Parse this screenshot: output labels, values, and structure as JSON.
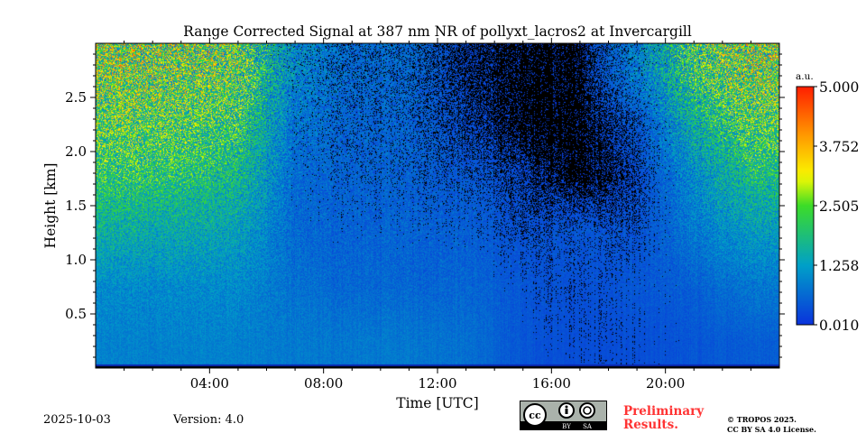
{
  "chart_data": {
    "type": "heatmap",
    "title": "Range Corrected Signal at 387 nm NR of pollyxt_lacros2 at Invercargill",
    "xlabel": "Time [UTC]",
    "ylabel": "Height [km]",
    "xlim_hours": [
      0,
      24
    ],
    "ylim_km": [
      0,
      3.0
    ],
    "x_ticks": [
      4,
      8,
      12,
      16,
      20
    ],
    "x_tick_labels": [
      "04:00",
      "08:00",
      "12:00",
      "16:00",
      "20:00"
    ],
    "y_ticks": [
      0.5,
      1.0,
      1.5,
      2.0,
      2.5
    ],
    "y_tick_labels": [
      "0.5",
      "1.0",
      "1.5",
      "2.0",
      "2.5"
    ],
    "colorbar": {
      "label": "a.u.",
      "range": [
        0.01,
        5.0
      ],
      "ticks": [
        "0.010",
        "1.258",
        "2.505",
        "3.752",
        "5.000"
      ],
      "colormap": "jet",
      "below_min_color": "#000000"
    },
    "grid_time_bins_hours": [
      0,
      2,
      4,
      6,
      8,
      10,
      12,
      14,
      16,
      18,
      20,
      22
    ],
    "grid_height_bins_km": [
      0,
      0.5,
      1.0,
      1.5,
      2.0,
      2.5
    ],
    "values_approx": [
      [
        0.9,
        1.0,
        1.5,
        2.0,
        2.3,
        2.5
      ],
      [
        0.9,
        1.0,
        1.4,
        1.9,
        2.2,
        2.4
      ],
      [
        0.9,
        1.0,
        1.3,
        1.7,
        2.0,
        2.3
      ],
      [
        0.8,
        0.7,
        0.6,
        0.6,
        0.7,
        0.9
      ],
      [
        0.8,
        0.6,
        0.55,
        0.5,
        0.5,
        0.5
      ],
      [
        0.8,
        0.6,
        0.55,
        0.5,
        0.5,
        0.5
      ],
      [
        0.7,
        0.6,
        0.5,
        0.4,
        0.2,
        0.1
      ],
      [
        0.4,
        0.4,
        0.3,
        0.2,
        0.0,
        0.0
      ],
      [
        0.3,
        0.3,
        0.4,
        0.0,
        0.0,
        0.0
      ],
      [
        0.3,
        0.4,
        0.3,
        0.2,
        0.3,
        0.8
      ],
      [
        0.4,
        0.5,
        0.8,
        1.0,
        1.5,
        2.0
      ],
      [
        0.5,
        0.8,
        1.2,
        1.8,
        2.2,
        2.5
      ]
    ]
  },
  "footer": {
    "date": "2025-10-03",
    "version": "Version: 4.0",
    "license_badge": [
      "BY",
      "SA"
    ],
    "preliminary": [
      "Preliminary",
      "Results."
    ],
    "copyright": [
      "© TROPOS 2025.",
      "CC BY SA 4.0 License."
    ]
  }
}
